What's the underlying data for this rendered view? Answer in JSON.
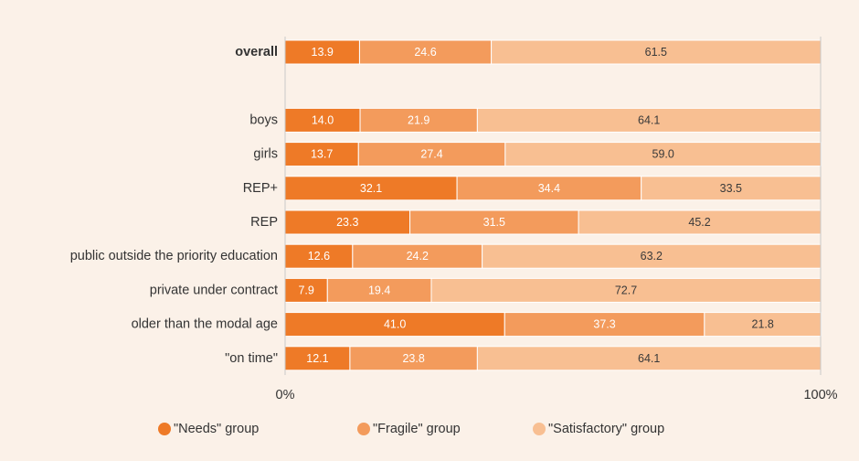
{
  "chart_data": {
    "type": "bar",
    "orientation": "horizontal",
    "stacked": true,
    "normalized": true,
    "categories": [
      "overall",
      "",
      "boys",
      "girls",
      "REP+",
      "REP",
      "public outside the priority education",
      "private under contract",
      "older than the modal age",
      "\"on time\""
    ],
    "emphasized_category": "overall",
    "series": [
      {
        "name": "\"Needs\" group",
        "color": "#ee7a27",
        "label_color": "#ffffff",
        "values": [
          13.9,
          null,
          14.0,
          13.7,
          32.1,
          23.3,
          12.6,
          7.9,
          41.0,
          12.1
        ],
        "labels": [
          "13.9",
          "",
          "14.0",
          "13.7",
          "32.1",
          "23.3",
          "12.6",
          "7.9",
          "41.0",
          "12.1"
        ]
      },
      {
        "name": "\"Fragile\" group",
        "color": "#f39b5c",
        "label_color": "#ffffff",
        "values": [
          24.6,
          null,
          21.9,
          27.4,
          34.4,
          31.5,
          24.2,
          19.4,
          37.3,
          23.8
        ],
        "labels": [
          "24.6",
          "",
          "21.9",
          "27.4",
          "34.4",
          "31.5",
          "24.2",
          "19.4",
          "37.3",
          "23.8"
        ]
      },
      {
        "name": "\"Satisfactory\" group",
        "color": "#f8bf92",
        "label_color": "#3a3a3a",
        "values": [
          61.5,
          null,
          64.1,
          59.0,
          33.5,
          45.2,
          63.2,
          72.7,
          21.8,
          64.1
        ],
        "labels": [
          "61.5",
          "",
          "64.1",
          "59.0",
          "33.5",
          "45.2",
          "63.2",
          "72.7",
          "21.8",
          "64.1"
        ]
      }
    ],
    "xlim": [
      0,
      100
    ],
    "x_tick_labels": [
      "0%",
      "100%"
    ],
    "legend_position": "bottom",
    "grid": false,
    "background_color": "#fbf1e8",
    "axis_color": "#c9c9c9",
    "label_color": "#333333"
  }
}
